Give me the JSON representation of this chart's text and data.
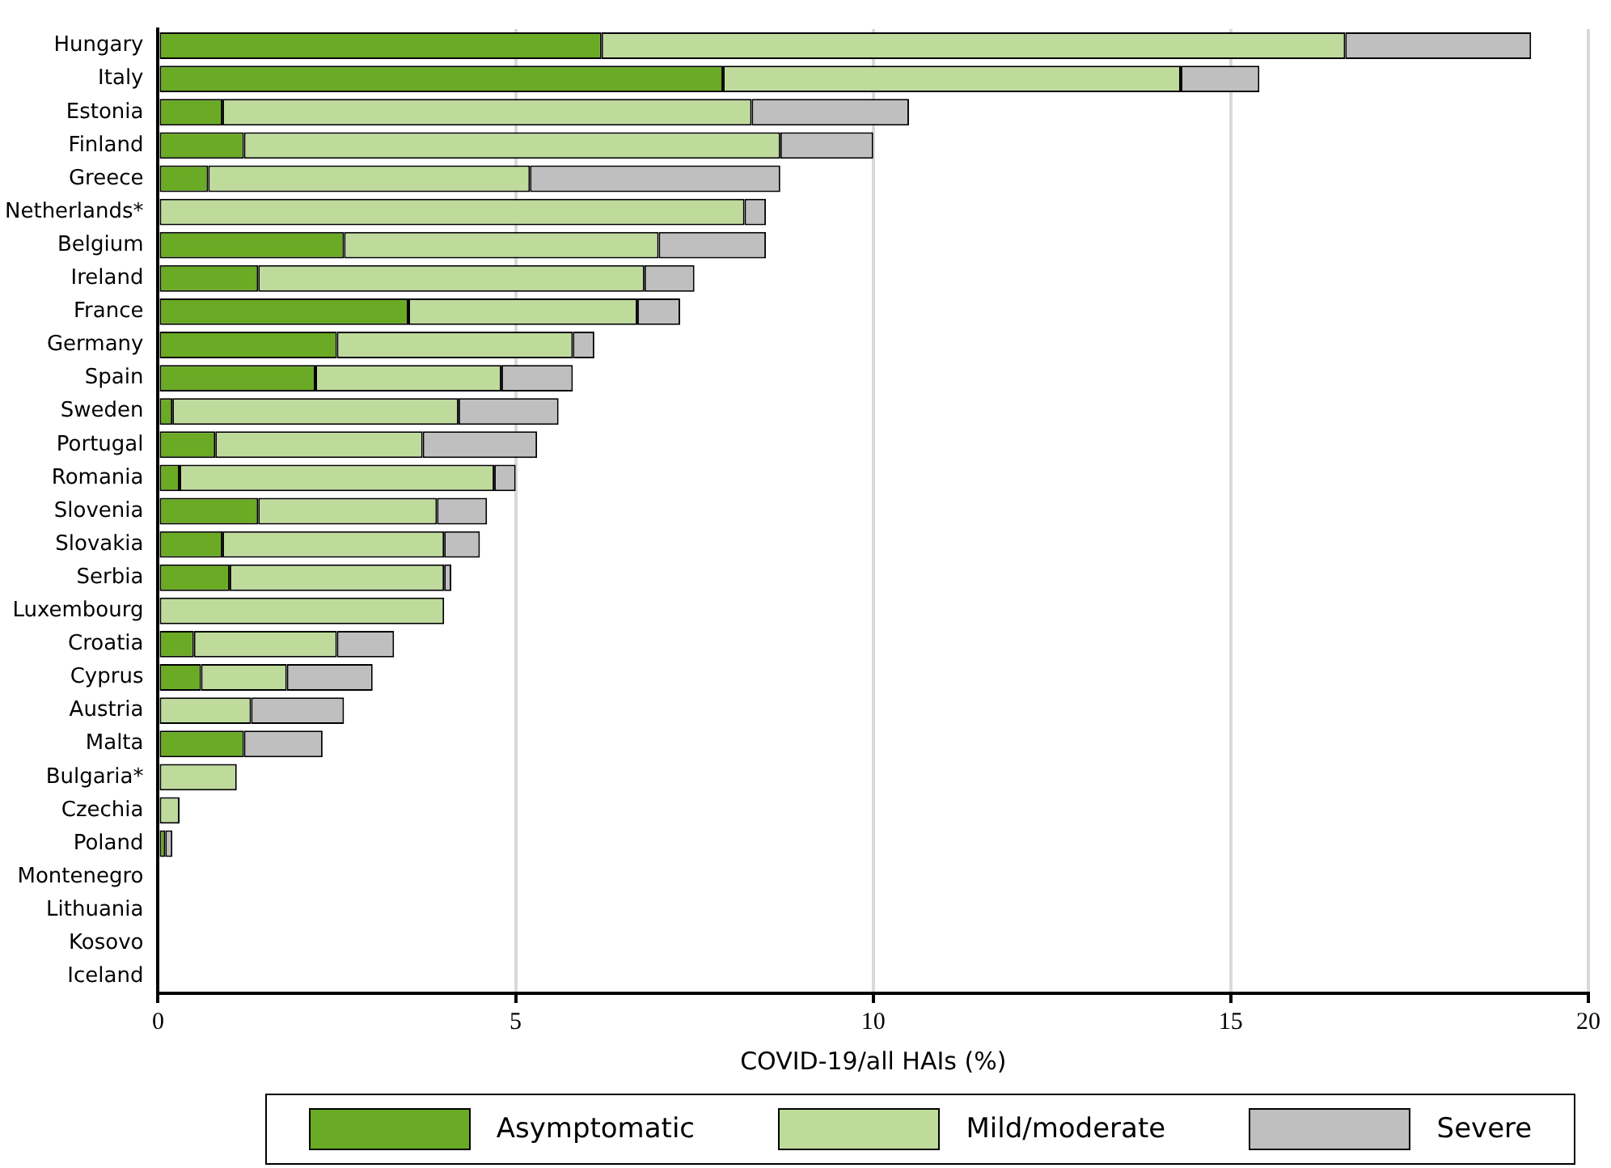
{
  "chart_data": {
    "type": "bar",
    "orientation": "horizontal",
    "stacked": true,
    "xlabel": "COVID-19/all HAIs (%)",
    "categories": [
      "Hungary",
      "Italy",
      "Estonia",
      "Finland",
      "Greece",
      "Netherlands*",
      "Belgium",
      "Ireland",
      "France",
      "Germany",
      "Spain",
      "Sweden",
      "Portugal",
      "Romania",
      "Slovenia",
      "Slovakia",
      "Serbia",
      "Luxembourg",
      "Croatia",
      "Cyprus",
      "Austria",
      "Malta",
      "Bulgaria*",
      "Czechia",
      "Poland",
      "Montenegro",
      "Lithuania",
      "Kosovo",
      "Iceland"
    ],
    "series": [
      {
        "name": "Asymptomatic",
        "color": "#6aaa24",
        "values": [
          6.2,
          7.9,
          0.9,
          1.2,
          0.7,
          0,
          2.6,
          1.4,
          3.5,
          2.5,
          2.2,
          0.2,
          0.8,
          0.3,
          1.4,
          0.9,
          1.0,
          0,
          0.5,
          0.6,
          0,
          1.2,
          0,
          0,
          0.1,
          0,
          0,
          0,
          0
        ]
      },
      {
        "name": "Mild/moderate",
        "color": "#bfdb9c",
        "values": [
          10.4,
          6.4,
          7.4,
          7.5,
          4.5,
          8.2,
          4.4,
          5.4,
          3.2,
          3.3,
          2.6,
          4.0,
          2.9,
          4.4,
          2.5,
          3.1,
          3.0,
          4.0,
          2.0,
          1.2,
          1.3,
          0,
          1.1,
          0.3,
          0,
          0,
          0,
          0,
          0
        ]
      },
      {
        "name": "Severe",
        "color": "#bfbfbf",
        "values": [
          2.6,
          1.1,
          2.2,
          1.3,
          3.5,
          0.3,
          1.5,
          0.7,
          0.6,
          0.3,
          1.0,
          1.4,
          1.6,
          0.3,
          0.7,
          0.5,
          0.1,
          0,
          0.8,
          1.2,
          1.3,
          1.1,
          0,
          0,
          0.1,
          0,
          0,
          0,
          0
        ]
      }
    ],
    "xlim": [
      0,
      20
    ],
    "xticks": [
      0,
      5,
      10,
      15,
      20
    ],
    "grid": "x",
    "legend": "bottom"
  }
}
